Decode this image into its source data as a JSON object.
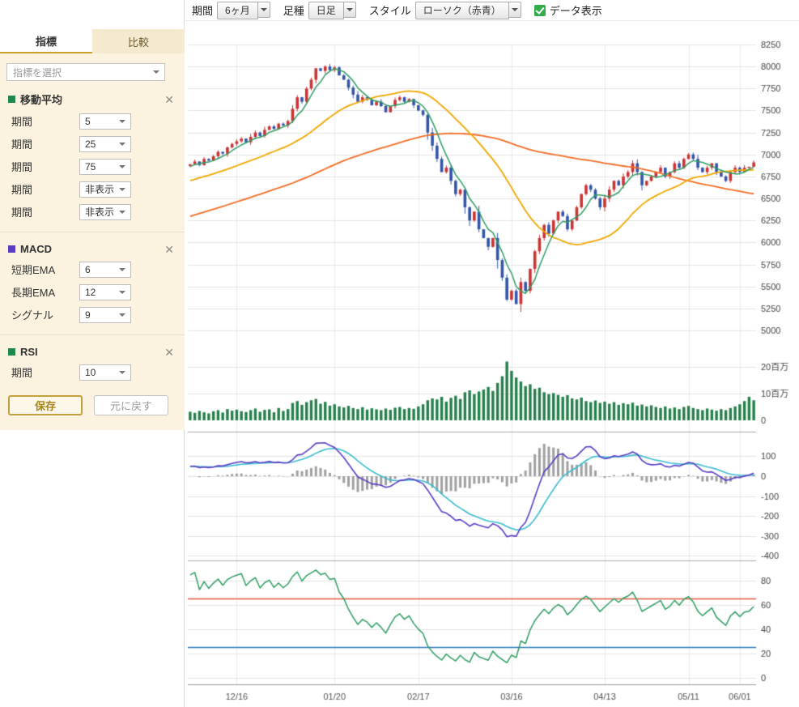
{
  "icons": {
    "close_glyph": "✕"
  },
  "sidebar": {
    "tabs": [
      {
        "label": "指標"
      },
      {
        "label": "比較"
      }
    ],
    "indicator_select_placeholder": "指標を選択",
    "sections": [
      {
        "id": "ma",
        "title": "移動平均",
        "color": "#1f8a4c",
        "rows": [
          {
            "label": "期間",
            "value": "5"
          },
          {
            "label": "期間",
            "value": "25"
          },
          {
            "label": "期間",
            "value": "75"
          },
          {
            "label": "期間",
            "value": "非表示"
          },
          {
            "label": "期間",
            "value": "非表示"
          }
        ]
      },
      {
        "id": "macd",
        "title": "MACD",
        "color": "#5b3cc4",
        "rows": [
          {
            "label": "短期EMA",
            "value": "6"
          },
          {
            "label": "長期EMA",
            "value": "12"
          },
          {
            "label": "シグナル",
            "value": "9"
          }
        ]
      },
      {
        "id": "rsi",
        "title": "RSI",
        "color": "#1f8a4c",
        "rows": [
          {
            "label": "期間",
            "value": "10"
          }
        ]
      }
    ],
    "save_button": "保存",
    "reset_button": "元に戻す"
  },
  "toolbar": {
    "period_label": "期間",
    "period_value": "6ヶ月",
    "bartype_label": "足種",
    "bartype_value": "日足",
    "style_label": "スタイル",
    "style_value": "ローソク（赤青）",
    "data_display_label": "データ表示",
    "data_display_checked": true
  },
  "chart_data": {
    "type": "candlestick",
    "panels": [
      "price_with_moving_averages",
      "volume",
      "macd",
      "rsi"
    ],
    "x_ticks": [
      {
        "label": "12/16",
        "index": 10
      },
      {
        "label": "01/20",
        "index": 31
      },
      {
        "label": "02/17",
        "index": 49
      },
      {
        "label": "03/16",
        "index": 69
      },
      {
        "label": "04/13",
        "index": 89
      },
      {
        "label": "05/11",
        "index": 107
      },
      {
        "label": "06/01",
        "index": 118
      }
    ],
    "price_axis": {
      "min": 5000,
      "max": 8250,
      "step": 250
    },
    "volume_axis": {
      "ticks": [
        {
          "label": "0",
          "value": 0
        },
        {
          "label": "10百万",
          "value": 10
        },
        {
          "label": "20百万",
          "value": 20
        }
      ],
      "unit": "百万"
    },
    "macd_axis": {
      "min": -400,
      "max": 100,
      "step": 100
    },
    "rsi_axis": {
      "min": 0,
      "max": 100,
      "label_ticks": [
        0,
        20,
        40,
        60,
        80
      ],
      "guides": [
        {
          "value": 65,
          "color": "#e2593f"
        },
        {
          "value": 25,
          "color": "#2d7bbf"
        }
      ]
    },
    "ma_periods": [
      5,
      25,
      75
    ],
    "macd_params": {
      "short_ema": 6,
      "long_ema": 12,
      "signal": 9
    },
    "rsi_period": 10,
    "colors": {
      "up_candle": "#cc3333",
      "down_candle": "#3355aa",
      "ma5": "#2f9e63",
      "ma25": "#f0a800",
      "ma75": "#f36c24",
      "volume": "#267f4c",
      "macd_line": "#5b3cc4",
      "macd_signal": "#3bbcd0",
      "macd_hist": "#a0a0a0",
      "rsi_line": "#2f9e63",
      "grid": "#e4e4e4",
      "separator": "#ababab",
      "axis_text": "#444444"
    },
    "close": [
      6890,
      6920,
      6880,
      6950,
      6930,
      6980,
      7030,
      7010,
      7080,
      7120,
      7150,
      7180,
      7140,
      7200,
      7250,
      7210,
      7280,
      7320,
      7290,
      7350,
      7330,
      7380,
      7520,
      7650,
      7600,
      7750,
      7850,
      7980,
      7950,
      8000,
      7960,
      7990,
      7900,
      7850,
      7760,
      7680,
      7600,
      7650,
      7620,
      7560,
      7600,
      7550,
      7480,
      7550,
      7620,
      7650,
      7600,
      7630,
      7560,
      7500,
      7450,
      7250,
      7100,
      6950,
      6800,
      6850,
      6700,
      6550,
      6600,
      6400,
      6250,
      6350,
      6150,
      6050,
      5950,
      6050,
      5800,
      5600,
      5350,
      5450,
      5300,
      5550,
      5450,
      5700,
      5900,
      6050,
      6200,
      6100,
      6250,
      6350,
      6300,
      6150,
      6250,
      6400,
      6550,
      6650,
      6600,
      6500,
      6400,
      6500,
      6600,
      6700,
      6650,
      6750,
      6800,
      6900,
      6800,
      6650,
      6700,
      6750,
      6800,
      6850,
      6750,
      6800,
      6900,
      6850,
      6950,
      7000,
      6950,
      6850,
      6800,
      6850,
      6900,
      6800,
      6750,
      6700,
      6800,
      6850,
      6800,
      6850,
      6860,
      6910
    ],
    "volume_millions": [
      3.2,
      2.8,
      3.5,
      3.0,
      2.6,
      3.4,
      3.8,
      2.9,
      4.2,
      3.6,
      4.0,
      3.4,
      3.1,
      3.8,
      4.4,
      3.2,
      3.9,
      4.1,
      3.0,
      4.6,
      3.5,
      4.2,
      6.5,
      7.2,
      5.8,
      6.8,
      7.5,
      8.0,
      6.2,
      6.9,
      5.5,
      6.0,
      5.2,
      4.8,
      5.4,
      4.6,
      4.2,
      4.9,
      4.0,
      4.5,
      4.1,
      3.8,
      4.4,
      3.9,
      4.7,
      5.0,
      4.2,
      4.6,
      4.3,
      5.2,
      6.0,
      7.5,
      8.2,
      7.8,
      8.8,
      7.0,
      8.4,
      9.2,
      8.0,
      10.5,
      11.2,
      9.8,
      10.8,
      11.5,
      12.5,
      11.0,
      14.0,
      16.5,
      22.0,
      18.5,
      16.0,
      14.5,
      12.8,
      13.5,
      11.8,
      12.2,
      10.5,
      9.8,
      10.2,
      9.5,
      8.8,
      9.4,
      8.2,
      7.8,
      8.5,
      7.2,
      6.8,
      7.4,
      6.5,
      7.0,
      6.2,
      6.8,
      5.8,
      6.4,
      6.0,
      6.6,
      5.5,
      5.9,
      5.2,
      5.6,
      5.0,
      4.6,
      5.2,
      4.4,
      4.8,
      4.2,
      5.0,
      5.4,
      4.6,
      4.2,
      3.8,
      4.4,
      4.0,
      3.6,
      4.2,
      3.8,
      4.6,
      5.2,
      6.0,
      7.2,
      8.8,
      7.5
    ]
  }
}
